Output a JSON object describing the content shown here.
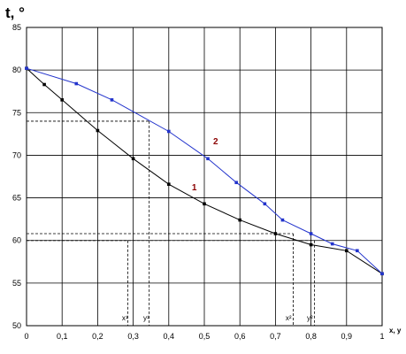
{
  "chart_data": {
    "type": "line",
    "ylabel": "t, °",
    "xlabel": "x, y",
    "xlim": [
      0,
      1
    ],
    "ylim": [
      50,
      85
    ],
    "grid": true,
    "x_ticks": [
      "0",
      "0,1",
      "0,2",
      "0,3",
      "0,4",
      "0,5",
      "0,6",
      "0,7",
      "0,8",
      "0,9",
      "1"
    ],
    "y_ticks": [
      "50",
      "55",
      "60",
      "65",
      "70",
      "75",
      "80",
      "85"
    ],
    "series": [
      {
        "name": "1",
        "color": "#000000",
        "points": [
          [
            0,
            80.2
          ],
          [
            0.05,
            78.3
          ],
          [
            0.1,
            76.5
          ],
          [
            0.2,
            72.9
          ],
          [
            0.3,
            69.6
          ],
          [
            0.4,
            66.6
          ],
          [
            0.5,
            64.3
          ],
          [
            0.6,
            62.4
          ],
          [
            0.7,
            60.8
          ],
          [
            0.8,
            59.5
          ],
          [
            0.9,
            58.8
          ],
          [
            1.0,
            56.1
          ]
        ]
      },
      {
        "name": "2",
        "color": "#2233cc",
        "points": [
          [
            0,
            80.2
          ],
          [
            0.14,
            78.4
          ],
          [
            0.24,
            76.5
          ],
          [
            0.4,
            72.8
          ],
          [
            0.51,
            69.6
          ],
          [
            0.59,
            66.8
          ],
          [
            0.67,
            64.3
          ],
          [
            0.72,
            62.4
          ],
          [
            0.8,
            60.8
          ],
          [
            0.86,
            59.6
          ],
          [
            0.93,
            58.8
          ],
          [
            1.0,
            56.1
          ]
        ]
      }
    ],
    "annotations": [
      {
        "text": "x¹",
        "x": 0.29
      },
      {
        "text": "y¹",
        "x": 0.35
      },
      {
        "text": "x²",
        "x": 0.75
      },
      {
        "text": "y²",
        "x": 0.81
      }
    ],
    "reference_lines": [
      {
        "y": 74.0,
        "x_end": 0.345,
        "x_drop": 0.345
      },
      {
        "y": 60.0,
        "x_end": 0.285,
        "x_drop": 0.285
      },
      {
        "y": 60.8,
        "x_end": 0.75,
        "x_drop": 0.75
      },
      {
        "y": 60.0,
        "x_end": 0.81,
        "x_drop": 0.81
      }
    ],
    "curve_labels": [
      {
        "text": "1",
        "x": 0.465,
        "y": 65.9
      },
      {
        "text": "2",
        "x": 0.525,
        "y": 71.3
      }
    ]
  }
}
